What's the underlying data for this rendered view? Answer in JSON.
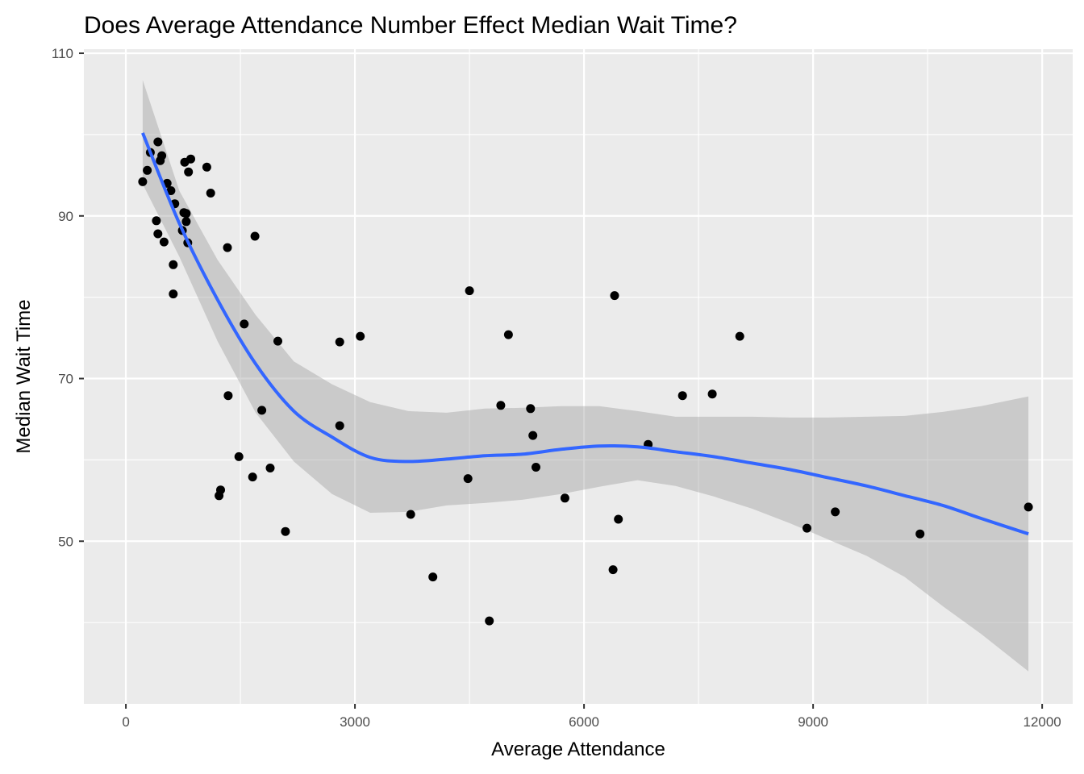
{
  "chart_data": {
    "type": "scatter",
    "title": "Does Average Attendance Number Effect Median Wait Time?",
    "xlabel": "Average Attendance",
    "ylabel": "Median Wait Time",
    "xlim": [
      -550,
      12400
    ],
    "ylim": [
      30,
      110.5
    ],
    "x_ticks": [
      0,
      3000,
      6000,
      9000,
      12000
    ],
    "x_tick_labels": [
      "0",
      "3000",
      "6000",
      "9000",
      "12000"
    ],
    "y_ticks": [
      50,
      70,
      90,
      110
    ],
    "y_tick_labels": [
      "50",
      "70",
      "90",
      "110"
    ],
    "x_minor": [
      1500,
      4500,
      7500,
      10500
    ],
    "y_minor": [
      40,
      60,
      80,
      100
    ],
    "grid": true,
    "colors": {
      "panel": "#ebebeb",
      "grid": "#ffffff",
      "points": "#000000",
      "smooth_line": "#3366ff",
      "ribbon": "#999999"
    },
    "points": [
      {
        "x": 220,
        "y": 94.2
      },
      {
        "x": 280,
        "y": 95.6
      },
      {
        "x": 320,
        "y": 97.8
      },
      {
        "x": 400,
        "y": 89.4
      },
      {
        "x": 420,
        "y": 99.1
      },
      {
        "x": 420,
        "y": 87.8
      },
      {
        "x": 450,
        "y": 96.8
      },
      {
        "x": 470,
        "y": 97.4
      },
      {
        "x": 500,
        "y": 86.8
      },
      {
        "x": 540,
        "y": 94.0
      },
      {
        "x": 590,
        "y": 93.1
      },
      {
        "x": 620,
        "y": 84.0
      },
      {
        "x": 620,
        "y": 80.4
      },
      {
        "x": 640,
        "y": 91.5
      },
      {
        "x": 740,
        "y": 88.2
      },
      {
        "x": 760,
        "y": 90.4
      },
      {
        "x": 770,
        "y": 96.6
      },
      {
        "x": 790,
        "y": 89.3
      },
      {
        "x": 790,
        "y": 90.3
      },
      {
        "x": 810,
        "y": 86.7
      },
      {
        "x": 820,
        "y": 95.4
      },
      {
        "x": 850,
        "y": 97.0
      },
      {
        "x": 1060,
        "y": 96.0
      },
      {
        "x": 1110,
        "y": 92.8
      },
      {
        "x": 1220,
        "y": 55.6
      },
      {
        "x": 1240,
        "y": 56.3
      },
      {
        "x": 1330,
        "y": 86.1
      },
      {
        "x": 1340,
        "y": 67.9
      },
      {
        "x": 1480,
        "y": 60.4
      },
      {
        "x": 1550,
        "y": 76.7
      },
      {
        "x": 1660,
        "y": 57.9
      },
      {
        "x": 1690,
        "y": 87.5
      },
      {
        "x": 1780,
        "y": 66.1
      },
      {
        "x": 1890,
        "y": 59.0
      },
      {
        "x": 1990,
        "y": 74.6
      },
      {
        "x": 2090,
        "y": 51.2
      },
      {
        "x": 2800,
        "y": 64.2
      },
      {
        "x": 2800,
        "y": 74.5
      },
      {
        "x": 3070,
        "y": 75.2
      },
      {
        "x": 3730,
        "y": 53.3
      },
      {
        "x": 4020,
        "y": 45.6
      },
      {
        "x": 4480,
        "y": 57.7
      },
      {
        "x": 4500,
        "y": 80.8
      },
      {
        "x": 4760,
        "y": 40.2
      },
      {
        "x": 4910,
        "y": 66.7
      },
      {
        "x": 5010,
        "y": 75.4
      },
      {
        "x": 5300,
        "y": 66.3
      },
      {
        "x": 5330,
        "y": 63.0
      },
      {
        "x": 5370,
        "y": 59.1
      },
      {
        "x": 5750,
        "y": 55.3
      },
      {
        "x": 6380,
        "y": 46.5
      },
      {
        "x": 6400,
        "y": 80.2
      },
      {
        "x": 6450,
        "y": 52.7
      },
      {
        "x": 6840,
        "y": 61.9
      },
      {
        "x": 7290,
        "y": 67.9
      },
      {
        "x": 7680,
        "y": 68.1
      },
      {
        "x": 8040,
        "y": 75.2
      },
      {
        "x": 8920,
        "y": 51.6
      },
      {
        "x": 9290,
        "y": 53.6
      },
      {
        "x": 10400,
        "y": 50.9
      },
      {
        "x": 11820,
        "y": 54.2
      }
    ],
    "smooth": {
      "x": [
        220,
        700,
        1200,
        1700,
        2200,
        2700,
        3200,
        3700,
        4200,
        4700,
        5200,
        5700,
        6200,
        6700,
        7200,
        7700,
        8200,
        8700,
        9200,
        9700,
        10200,
        10700,
        11200,
        11820
      ],
      "y": [
        100.2,
        89.1,
        79.7,
        71.8,
        66.0,
        62.8,
        60.3,
        59.8,
        60.1,
        60.5,
        60.7,
        61.3,
        61.7,
        61.6,
        61.0,
        60.4,
        59.6,
        58.8,
        57.8,
        56.8,
        55.6,
        54.4,
        52.8,
        50.9
      ],
      "lower": [
        93.9,
        85.0,
        74.6,
        65.8,
        59.8,
        55.8,
        53.5,
        53.6,
        54.4,
        54.7,
        55.1,
        55.8,
        56.7,
        57.5,
        56.8,
        55.5,
        54.0,
        52.2,
        50.2,
        48.2,
        45.6,
        42.0,
        38.6,
        34.0
      ],
      "upper": [
        106.7,
        93.1,
        84.6,
        77.8,
        72.1,
        69.3,
        67.1,
        66.0,
        65.8,
        66.3,
        66.4,
        66.6,
        66.6,
        66.0,
        65.3,
        65.3,
        65.3,
        65.2,
        65.2,
        65.3,
        65.4,
        65.9,
        66.6,
        67.8
      ]
    }
  }
}
